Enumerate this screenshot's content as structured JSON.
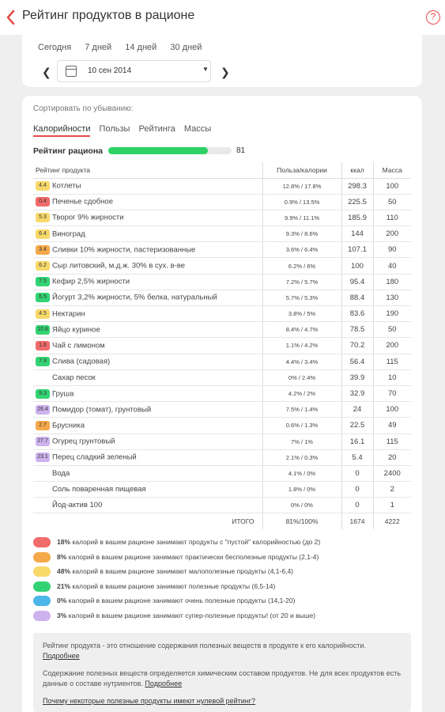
{
  "header": {
    "title": "Рейтинг продуктов в рационе",
    "help": "?"
  },
  "period_tabs": [
    "Сегодня",
    "7 дней",
    "14 дней",
    "30 дней"
  ],
  "date": {
    "value": "10 сен 2014"
  },
  "sort": {
    "label": "Сортировать по убыванию:",
    "tabs": [
      "Калорийности",
      "Пользы",
      "Рейтинга",
      "Массы"
    ],
    "active_index": 0
  },
  "ration_rating": {
    "label": "Рейтинг рациона",
    "value": "81",
    "level_fraction": 0.81
  },
  "table": {
    "headers": {
      "name": "Рейтинг продукта",
      "ratio": "Польза/калории",
      "kcal": "ккал",
      "mass": "Масса"
    },
    "rows": [
      {
        "badge": "4.4",
        "color": "#f7d96a",
        "name": "Котлеты",
        "ratio": "12.8% / 17.8%",
        "kcal": "298.3",
        "mass": "100"
      },
      {
        "badge": "0.4",
        "color": "#f06b6b",
        "name": "Печенье сдобное",
        "ratio": "0.9% / 13.5%",
        "kcal": "225.5",
        "mass": "50"
      },
      {
        "badge": "5.3",
        "color": "#f7d96a",
        "name": "Творог 9% жирности",
        "ratio": "9.9% / 11.1%",
        "kcal": "185.9",
        "mass": "110"
      },
      {
        "badge": "6.4",
        "color": "#f7d96a",
        "name": "Виноград",
        "ratio": "9.3% / 8.6%",
        "kcal": "144",
        "mass": "200"
      },
      {
        "badge": "3.4",
        "color": "#f5a94a",
        "name": "Сливки 10% жирности, пастеризованные",
        "ratio": "3.6% / 6.4%",
        "kcal": "107.1",
        "mass": "90"
      },
      {
        "badge": "6.2",
        "color": "#f7d96a",
        "name": "Сыр литовский, м.д.ж. 30% в сух. в-ве",
        "ratio": "6.2% / 6%",
        "kcal": "100",
        "mass": "40"
      },
      {
        "badge": "7.5",
        "color": "#33d373",
        "name": "Кефир 2,5% жирности",
        "ratio": "7.2% / 5.7%",
        "kcal": "95.4",
        "mass": "180"
      },
      {
        "badge": "6.5",
        "color": "#33d373",
        "name": "Йогурт 3,2% жирности, 5% белка, натуральный",
        "ratio": "5.7% / 5.3%",
        "kcal": "88.4",
        "mass": "130"
      },
      {
        "badge": "4.5",
        "color": "#f7d96a",
        "name": "Нектарин",
        "ratio": "3.8% / 5%",
        "kcal": "83.6",
        "mass": "190"
      },
      {
        "badge": "10.8",
        "color": "#33d373",
        "name": "Яйцо куриное",
        "ratio": "8.4% / 4.7%",
        "kcal": "78.5",
        "mass": "50"
      },
      {
        "badge": "1.6",
        "color": "#f06b6b",
        "name": "Чай с лимоном",
        "ratio": "1.1% / 4.2%",
        "kcal": "70.2",
        "mass": "200"
      },
      {
        "badge": "7.9",
        "color": "#33d373",
        "name": "Слива (садовая)",
        "ratio": "4.4% / 3.4%",
        "kcal": "56.4",
        "mass": "115"
      },
      {
        "badge": "",
        "color": "",
        "name": "Сахар песок",
        "ratio": "0% / 2.4%",
        "kcal": "39.9",
        "mass": "10"
      },
      {
        "badge": "9.3",
        "color": "#33d373",
        "name": "Груша",
        "ratio": "4.2% / 2%",
        "kcal": "32.9",
        "mass": "70"
      },
      {
        "badge": "26.4",
        "color": "#cdb2ee",
        "name": "Помидор (томат), грунтовый",
        "ratio": "7.5% / 1.4%",
        "kcal": "24",
        "mass": "100"
      },
      {
        "badge": "2.7",
        "color": "#f5a94a",
        "name": "Брусника",
        "ratio": "0.6% / 1.3%",
        "kcal": "22.5",
        "mass": "49"
      },
      {
        "badge": "27.7",
        "color": "#cdb2ee",
        "name": "Огурец грунтовый",
        "ratio": "7% / 1%",
        "kcal": "16.1",
        "mass": "115"
      },
      {
        "badge": "23.1",
        "color": "#cdb2ee",
        "name": "Перец сладкий зеленый",
        "ratio": "2.1% / 0.3%",
        "kcal": "5.4",
        "mass": "20"
      },
      {
        "badge": "",
        "color": "",
        "name": "Вода",
        "ratio": "4.1% / 0%",
        "kcal": "0",
        "mass": "2400"
      },
      {
        "badge": "",
        "color": "",
        "name": "Соль поваренная пищевая",
        "ratio": "1.8% / 0%",
        "kcal": "0",
        "mass": "2"
      },
      {
        "badge": "",
        "color": "",
        "name": "Йод-актив 100",
        "ratio": "0% / 0%",
        "kcal": "0",
        "mass": "1"
      }
    ],
    "total": {
      "label": "ИТОГО",
      "ratio": "81%/100%",
      "kcal": "1674",
      "mass": "4222"
    }
  },
  "legend": [
    {
      "color": "#f06b6b",
      "pct": "18%",
      "text": "калорий в вашем рационе занимают продукты с \"пустой\" калорийностью (до 2)"
    },
    {
      "color": "#f5a94a",
      "pct": "8%",
      "text": "калорий в вашем рационе занимают практически бесполезные продукты (2,1-4)"
    },
    {
      "color": "#f7d96a",
      "pct": "48%",
      "text": "калорий в вашем рационе занимают малополезные продукты (4,1-6,4)"
    },
    {
      "color": "#33d373",
      "pct": "21%",
      "text": "калорий в вашем рационе занимают полезные продукты (6,5-14)"
    },
    {
      "color": "#4db6e8",
      "pct": "0%",
      "text": "калорий в вашем рационе занимают очень полезные продукты (14,1-20)"
    },
    {
      "color": "#cdb2ee",
      "pct": "3%",
      "text": "калорий в вашем рационе занимают супер-полезные продукты! (от 20 и выше)"
    }
  ],
  "info": {
    "p1": "Рейтинг продукта - это отношение содержания полезных веществ в продукте к его калорийности.",
    "p1_link": "Подробнее",
    "p2": "Содержание полезных веществ определяется химическим составом продуктов. Не для всех продуктов есть данные о составе нутриентов.",
    "p2_link": "Подробнее",
    "question_link": "Почему некоторые полезные продукты имеют нулевой рейтинг?"
  },
  "colors": {
    "accent": "#e54b4b",
    "rating_fill": "#2ed164"
  }
}
